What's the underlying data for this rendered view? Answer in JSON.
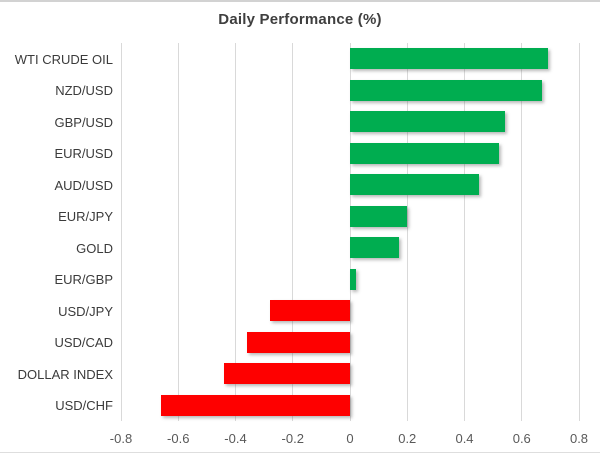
{
  "chart_data": {
    "type": "bar",
    "orientation": "horizontal",
    "title": "Daily Performance (%)",
    "categories": [
      "WTI CRUDE OIL",
      "NZD/USD",
      "GBP/USD",
      "EUR/USD",
      "AUD/USD",
      "EUR/JPY",
      "GOLD",
      "EUR/GBP",
      "USD/JPY",
      "USD/CAD",
      "DOLLAR INDEX",
      "USD/CHF"
    ],
    "values": [
      0.69,
      0.67,
      0.54,
      0.52,
      0.45,
      0.2,
      0.17,
      0.02,
      -0.28,
      -0.36,
      -0.44,
      -0.66
    ],
    "xlim": [
      -0.8,
      0.8
    ],
    "x_ticks": [
      -0.8,
      -0.6,
      -0.4,
      -0.2,
      0,
      0.2,
      0.4,
      0.6,
      0.8
    ],
    "x_tick_labels": [
      "-0.8",
      "-0.6",
      "-0.4",
      "-0.2",
      "0",
      "0.2",
      "0.4",
      "0.6",
      "0.8"
    ],
    "grid": "vertical-on",
    "legend": "none",
    "xlabel": "",
    "ylabel": ""
  },
  "style": {
    "positive_color": "#00ad50",
    "negative_color": "#fe0000",
    "grid_color": "#d9d9d9",
    "title_color": "#3f3f3f",
    "category_label_color": "#3b3b3b",
    "tick_label_color": "#595959",
    "background": "#ffffff"
  }
}
